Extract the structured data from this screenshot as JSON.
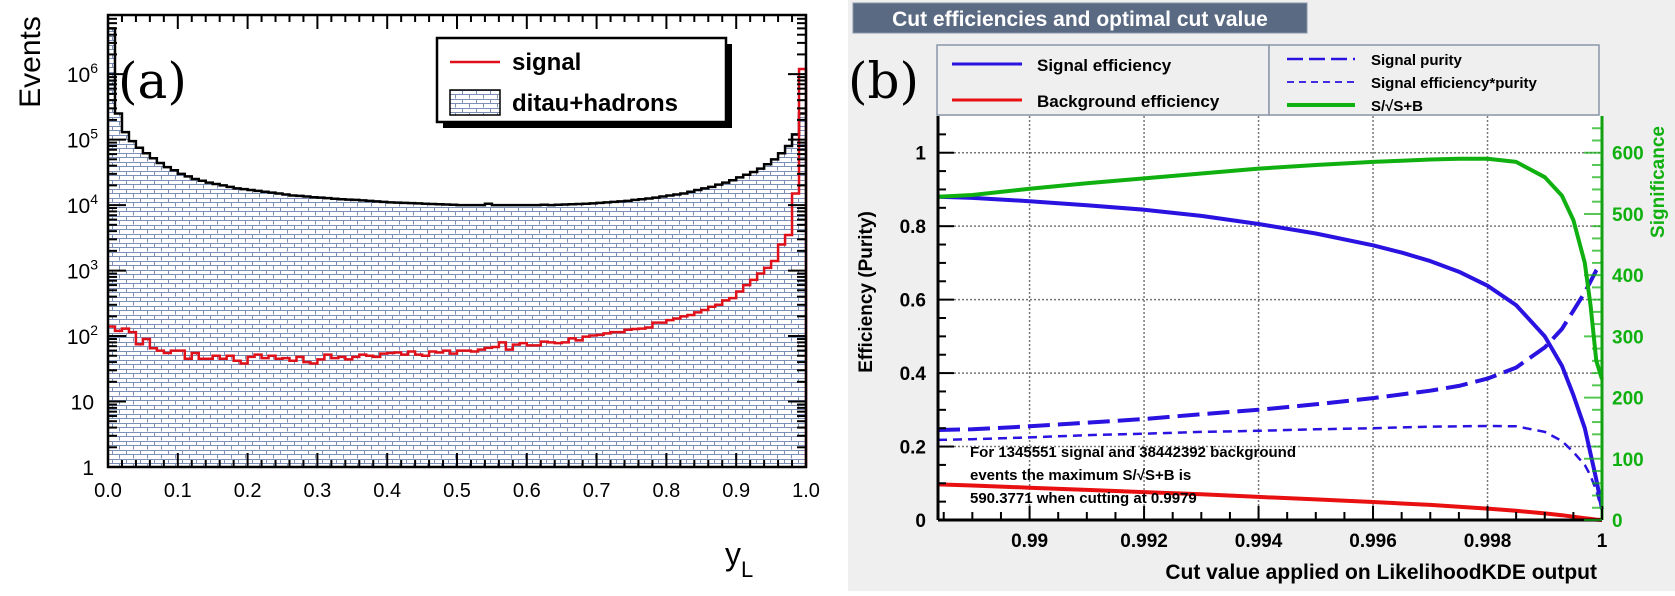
{
  "chart_data": [
    {
      "id": "a",
      "type": "bar",
      "panel_label": "(a)",
      "title": "",
      "xlabel": "y",
      "xlabel_sub": "L",
      "ylabel": "Events",
      "xlim": [
        0.0,
        1.0
      ],
      "ylim": [
        1,
        8000000
      ],
      "yscale": "log",
      "xticks": [
        "0.0",
        "0.1",
        "0.2",
        "0.3",
        "0.4",
        "0.5",
        "0.6",
        "0.7",
        "0.8",
        "0.9",
        "1.0"
      ],
      "yticks": [
        {
          "value": 1,
          "label": "1"
        },
        {
          "value": 10,
          "label": "10"
        },
        {
          "value": 100,
          "label": "10",
          "exp": "2"
        },
        {
          "value": 1000,
          "label": "10",
          "exp": "3"
        },
        {
          "value": 10000,
          "label": "10",
          "exp": "4"
        },
        {
          "value": 100000,
          "label": "10",
          "exp": "5"
        },
        {
          "value": 1000000,
          "label": "10",
          "exp": "6"
        }
      ],
      "legend": {
        "position": "top-right",
        "entries": [
          {
            "label": "signal",
            "style": "line",
            "color": "#e0101a"
          },
          {
            "label": "ditau+hadrons",
            "style": "hatched-fill",
            "color": "#7b8fb8"
          }
        ]
      },
      "bins": 100,
      "series": [
        {
          "name": "ditau+hadrons",
          "color": "#000000",
          "fill": "#7b8fb8",
          "values": [
            5000000,
            250000,
            130000,
            95000,
            75000,
            62000,
            52000,
            44000,
            38000,
            34000,
            30000,
            27500,
            25000,
            23500,
            22000,
            21000,
            20000,
            19000,
            18000,
            17500,
            17000,
            16500,
            16000,
            15500,
            15000,
            14500,
            14000,
            13800,
            13500,
            13200,
            13000,
            12800,
            12500,
            12300,
            12100,
            12000,
            11800,
            11600,
            11400,
            11200,
            11000,
            10900,
            10800,
            10700,
            10600,
            10500,
            10400,
            10300,
            10200,
            10100,
            10000,
            10000,
            10000,
            10000,
            10500,
            10000,
            10000,
            10000,
            10000,
            10000,
            10000,
            10000,
            10100,
            10000,
            10100,
            10200,
            10300,
            10400,
            10500,
            10600,
            10800,
            11000,
            11200,
            11400,
            11600,
            12000,
            12300,
            12600,
            13000,
            13500,
            14000,
            14500,
            15000,
            16000,
            17000,
            18000,
            19000,
            20500,
            22000,
            24000,
            26500,
            29000,
            32000,
            36000,
            42000,
            50000,
            62000,
            80000,
            120000,
            250000
          ]
        },
        {
          "name": "signal",
          "color": "#e0101a",
          "values": [
            140,
            120,
            130,
            115,
            75,
            90,
            65,
            60,
            55,
            60,
            60,
            45,
            55,
            45,
            45,
            50,
            45,
            50,
            42,
            38,
            48,
            52,
            46,
            50,
            45,
            46,
            42,
            48,
            40,
            38,
            44,
            52,
            46,
            48,
            44,
            48,
            52,
            50,
            48,
            54,
            55,
            56,
            52,
            58,
            52,
            50,
            58,
            56,
            60,
            54,
            60,
            60,
            58,
            62,
            66,
            68,
            80,
            62,
            74,
            78,
            72,
            72,
            82,
            80,
            78,
            80,
            92,
            86,
            98,
            102,
            104,
            110,
            115,
            115,
            125,
            128,
            130,
            135,
            160,
            160,
            175,
            185,
            200,
            210,
            230,
            250,
            280,
            300,
            350,
            380,
            480,
            600,
            720,
            900,
            1100,
            1400,
            2500,
            3500,
            15000,
            1200000
          ]
        }
      ]
    },
    {
      "id": "b",
      "type": "line",
      "panel_label": "(b)",
      "title": "Cut efficiencies and optimal cut value",
      "xlabel": "Cut value applied on LikelihoodKDE output",
      "ylabel": "Efficiency (Purity)",
      "y2label": "Significance",
      "xlim": [
        0.9884,
        1.0
      ],
      "ylim": [
        0,
        1.1
      ],
      "y2lim": [
        0,
        660
      ],
      "grid": true,
      "xticks": [
        "0.99",
        "0.992",
        "0.994",
        "0.996",
        "0.998",
        "1"
      ],
      "xtick_values": [
        0.99,
        0.992,
        0.994,
        0.996,
        0.998,
        1.0
      ],
      "yticks": [
        "0",
        "0.2",
        "0.4",
        "0.6",
        "0.8",
        "1"
      ],
      "ytick_values": [
        0,
        0.2,
        0.4,
        0.6,
        0.8,
        1.0
      ],
      "y2ticks": [
        "0",
        "100",
        "200",
        "300",
        "400",
        "500",
        "600"
      ],
      "y2tick_values": [
        0,
        100,
        200,
        300,
        400,
        500,
        600
      ],
      "legend": {
        "position": "top",
        "entries": [
          {
            "label": "Signal efficiency",
            "style": "solid",
            "color": "#2a12e0"
          },
          {
            "label": "Background efficiency",
            "style": "solid",
            "color": "#e81010"
          },
          {
            "label": "Signal purity",
            "style": "long-dash",
            "color": "#2a12e0"
          },
          {
            "label": "Signal efficiency*purity",
            "style": "short-dash",
            "color": "#2a12e0"
          },
          {
            "label": "S/√S+B",
            "style": "solid",
            "color": "#10b010"
          }
        ]
      },
      "annotation": [
        "For 1345551 signal and 38442392 background",
        "events the maximum S/√S+B is",
        "590.3771 when cutting at 0.9979"
      ],
      "x": [
        0.9884,
        0.989,
        0.99,
        0.991,
        0.992,
        0.993,
        0.994,
        0.995,
        0.996,
        0.9965,
        0.997,
        0.9975,
        0.998,
        0.9985,
        0.999,
        0.9993,
        0.9995,
        0.9997,
        0.9998,
        0.9999,
        1.0
      ],
      "series": [
        {
          "name": "Signal efficiency",
          "axis": "left",
          "color": "#2a12e0",
          "dash": "solid",
          "values": [
            0.88,
            0.877,
            0.868,
            0.857,
            0.845,
            0.828,
            0.806,
            0.78,
            0.748,
            0.728,
            0.705,
            0.676,
            0.638,
            0.585,
            0.5,
            0.42,
            0.34,
            0.25,
            0.18,
            0.11,
            0.03
          ]
        },
        {
          "name": "Background efficiency",
          "axis": "left",
          "color": "#e81010",
          "dash": "solid",
          "values": [
            0.097,
            0.094,
            0.088,
            0.082,
            0.076,
            0.07,
            0.063,
            0.056,
            0.049,
            0.045,
            0.041,
            0.036,
            0.031,
            0.025,
            0.018,
            0.013,
            0.009,
            0.005,
            0.003,
            0.001,
            0.0
          ]
        },
        {
          "name": "Signal purity",
          "axis": "left",
          "color": "#2a12e0",
          "dash": "long",
          "values": [
            0.245,
            0.247,
            0.255,
            0.265,
            0.275,
            0.288,
            0.3,
            0.315,
            0.332,
            0.342,
            0.352,
            0.365,
            0.385,
            0.415,
            0.47,
            0.52,
            0.57,
            0.62,
            0.65,
            0.68,
            0.7
          ]
        },
        {
          "name": "Signal efficiency*purity",
          "axis": "left",
          "color": "#2a12e0",
          "dash": "short",
          "values": [
            0.218,
            0.22,
            0.225,
            0.231,
            0.235,
            0.24,
            0.243,
            0.247,
            0.25,
            0.252,
            0.254,
            0.255,
            0.256,
            0.255,
            0.24,
            0.215,
            0.185,
            0.15,
            0.12,
            0.08,
            0.025
          ]
        },
        {
          "name": "S/√S+B",
          "axis": "right",
          "color": "#10b010",
          "dash": "solid",
          "values": [
            528,
            531,
            541,
            550,
            558,
            566,
            574,
            580,
            585,
            587,
            589,
            590,
            590,
            585,
            560,
            530,
            490,
            420,
            350,
            260,
            230
          ]
        }
      ]
    }
  ]
}
